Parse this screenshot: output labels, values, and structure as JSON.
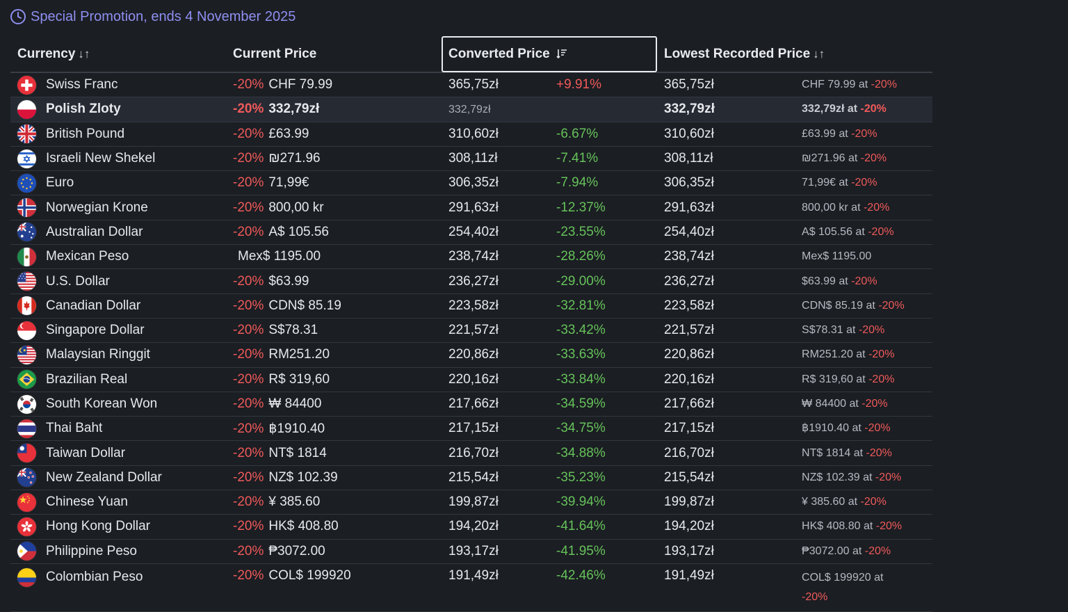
{
  "promo": {
    "text": "Special Promotion, ends 4 November 2025",
    "icon": "clock-icon"
  },
  "headers": {
    "currency": "Currency",
    "current_price": "Current Price",
    "converted_price": "Converted Price",
    "lowest_recorded_price": "Lowest Recorded Price"
  },
  "colors": {
    "accent": "#8f8ff0",
    "discount": "#f05a5a",
    "decrease": "#66c25a",
    "background": "#1b1e23"
  },
  "rows": [
    {
      "name": "Swiss Franc",
      "flag": "ch",
      "discount": "-20%",
      "price": "CHF 79.99",
      "converted": "365,75zł",
      "diff": "+9.91%",
      "diff_dir": "up",
      "lowest": "365,75zł",
      "lowest_detail": "CHF 79.99 at",
      "lowest_discount": "-20%"
    },
    {
      "name": "Polish Zloty",
      "flag": "pl",
      "discount": "-20%",
      "price": "332,79zł",
      "converted": "332,79zł",
      "diff": "",
      "diff_dir": "none",
      "lowest": "332,79zł",
      "lowest_detail": "332,79zł at",
      "lowest_discount": "-20%",
      "current": true
    },
    {
      "name": "British Pound",
      "flag": "gb",
      "discount": "-20%",
      "price": "£63.99",
      "converted": "310,60zł",
      "diff": "-6.67%",
      "diff_dir": "down",
      "lowest": "310,60zł",
      "lowest_detail": "£63.99 at",
      "lowest_discount": "-20%"
    },
    {
      "name": "Israeli New Shekel",
      "flag": "il",
      "discount": "-20%",
      "price": "₪271.96",
      "converted": "308,11zł",
      "diff": "-7.41%",
      "diff_dir": "down",
      "lowest": "308,11zł",
      "lowest_detail": "₪271.96 at",
      "lowest_discount": "-20%"
    },
    {
      "name": "Euro",
      "flag": "eu",
      "discount": "-20%",
      "price": "71,99€",
      "converted": "306,35zł",
      "diff": "-7.94%",
      "diff_dir": "down",
      "lowest": "306,35zł",
      "lowest_detail": "71,99€ at",
      "lowest_discount": "-20%"
    },
    {
      "name": "Norwegian Krone",
      "flag": "no",
      "discount": "-20%",
      "price": "800,00 kr",
      "converted": "291,63zł",
      "diff": "-12.37%",
      "diff_dir": "down",
      "lowest": "291,63zł",
      "lowest_detail": "800,00 kr at",
      "lowest_discount": "-20%"
    },
    {
      "name": "Australian Dollar",
      "flag": "au",
      "discount": "-20%",
      "price": "A$ 105.56",
      "converted": "254,40zł",
      "diff": "-23.55%",
      "diff_dir": "down",
      "lowest": "254,40zł",
      "lowest_detail": "A$ 105.56 at",
      "lowest_discount": "-20%"
    },
    {
      "name": "Mexican Peso",
      "flag": "mx",
      "discount": "",
      "price": "Mex$ 1195.00",
      "converted": "238,74zł",
      "diff": "-28.26%",
      "diff_dir": "down",
      "lowest": "238,74zł",
      "lowest_detail": "Mex$ 1195.00",
      "lowest_discount": ""
    },
    {
      "name": "U.S. Dollar",
      "flag": "us",
      "discount": "-20%",
      "price": "$63.99",
      "converted": "236,27zł",
      "diff": "-29.00%",
      "diff_dir": "down",
      "lowest": "236,27zł",
      "lowest_detail": "$63.99 at",
      "lowest_discount": "-20%"
    },
    {
      "name": "Canadian Dollar",
      "flag": "ca",
      "discount": "-20%",
      "price": "CDN$ 85.19",
      "converted": "223,58zł",
      "diff": "-32.81%",
      "diff_dir": "down",
      "lowest": "223,58zł",
      "lowest_detail": "CDN$ 85.19 at",
      "lowest_discount": "-20%"
    },
    {
      "name": "Singapore Dollar",
      "flag": "sg",
      "discount": "-20%",
      "price": "S$78.31",
      "converted": "221,57zł",
      "diff": "-33.42%",
      "diff_dir": "down",
      "lowest": "221,57zł",
      "lowest_detail": "S$78.31 at",
      "lowest_discount": "-20%"
    },
    {
      "name": "Malaysian Ringgit",
      "flag": "my",
      "discount": "-20%",
      "price": "RM251.20",
      "converted": "220,86zł",
      "diff": "-33.63%",
      "diff_dir": "down",
      "lowest": "220,86zł",
      "lowest_detail": "RM251.20 at",
      "lowest_discount": "-20%"
    },
    {
      "name": "Brazilian Real",
      "flag": "br",
      "discount": "-20%",
      "price": "R$ 319,60",
      "converted": "220,16zł",
      "diff": "-33.84%",
      "diff_dir": "down",
      "lowest": "220,16zł",
      "lowest_detail": "R$ 319,60 at",
      "lowest_discount": "-20%"
    },
    {
      "name": "South Korean Won",
      "flag": "kr",
      "discount": "-20%",
      "price": "₩ 84400",
      "converted": "217,66zł",
      "diff": "-34.59%",
      "diff_dir": "down",
      "lowest": "217,66zł",
      "lowest_detail": "₩ 84400 at",
      "lowest_discount": "-20%"
    },
    {
      "name": "Thai Baht",
      "flag": "th",
      "discount": "-20%",
      "price": "฿1910.40",
      "converted": "217,15zł",
      "diff": "-34.75%",
      "diff_dir": "down",
      "lowest": "217,15zł",
      "lowest_detail": "฿1910.40 at",
      "lowest_discount": "-20%"
    },
    {
      "name": "Taiwan Dollar",
      "flag": "tw",
      "discount": "-20%",
      "price": "NT$ 1814",
      "converted": "216,70zł",
      "diff": "-34.88%",
      "diff_dir": "down",
      "lowest": "216,70zł",
      "lowest_detail": "NT$ 1814 at",
      "lowest_discount": "-20%"
    },
    {
      "name": "New Zealand Dollar",
      "flag": "nz",
      "discount": "-20%",
      "price": "NZ$ 102.39",
      "converted": "215,54zł",
      "diff": "-35.23%",
      "diff_dir": "down",
      "lowest": "215,54zł",
      "lowest_detail": "NZ$ 102.39 at",
      "lowest_discount": "-20%"
    },
    {
      "name": "Chinese Yuan",
      "flag": "cn",
      "discount": "-20%",
      "price": "¥ 385.60",
      "converted": "199,87zł",
      "diff": "-39.94%",
      "diff_dir": "down",
      "lowest": "199,87zł",
      "lowest_detail": "¥ 385.60 at",
      "lowest_discount": "-20%"
    },
    {
      "name": "Hong Kong Dollar",
      "flag": "hk",
      "discount": "-20%",
      "price": "HK$ 408.80",
      "converted": "194,20zł",
      "diff": "-41.64%",
      "diff_dir": "down",
      "lowest": "194,20zł",
      "lowest_detail": "HK$ 408.80 at",
      "lowest_discount": "-20%"
    },
    {
      "name": "Philippine Peso",
      "flag": "ph",
      "discount": "-20%",
      "price": "₱3072.00",
      "converted": "193,17zł",
      "diff": "-41.95%",
      "diff_dir": "down",
      "lowest": "193,17zł",
      "lowest_detail": "₱3072.00 at",
      "lowest_discount": "-20%"
    },
    {
      "name": "Colombian Peso",
      "flag": "co",
      "discount": "-20%",
      "price": "COL$ 199920",
      "converted": "191,49zł",
      "diff": "-42.46%",
      "diff_dir": "down",
      "lowest": "191,49zł",
      "lowest_detail": "COL$ 199920 at",
      "lowest_discount": "-20%"
    }
  ]
}
